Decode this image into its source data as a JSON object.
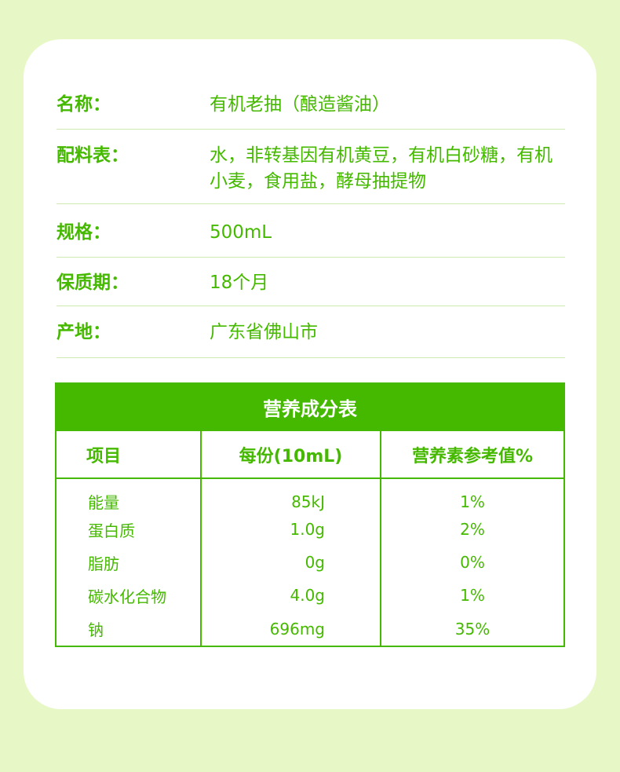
{
  "info": [
    {
      "label": "名称：",
      "value": "有机老抽（酿造酱油）"
    },
    {
      "label": "配料表：",
      "value": "水，非转基因有机黄豆，有机白砂糖，有机小麦，食用盐，酵母抽提物"
    },
    {
      "label": "规格：",
      "value": "500mL"
    },
    {
      "label": "保质期：",
      "value": "18个月"
    },
    {
      "label": "产地：",
      "value": "广东省佛山市"
    }
  ],
  "nutrition": {
    "title": "营养成分表",
    "headers": [
      "项目",
      "每份(10mL)",
      "营养素参考值%"
    ],
    "rows": [
      [
        "能量",
        "85kJ",
        "1%"
      ],
      [
        "蛋白质",
        "1.0g",
        "2%"
      ],
      [
        "脂肪",
        "0g",
        "0%"
      ],
      [
        "碳水化合物",
        "4.0g",
        "1%"
      ],
      [
        "钠",
        "696mg",
        "35%"
      ]
    ]
  },
  "colors": {
    "accent": "#45b900",
    "background": "#e7f8c6"
  }
}
